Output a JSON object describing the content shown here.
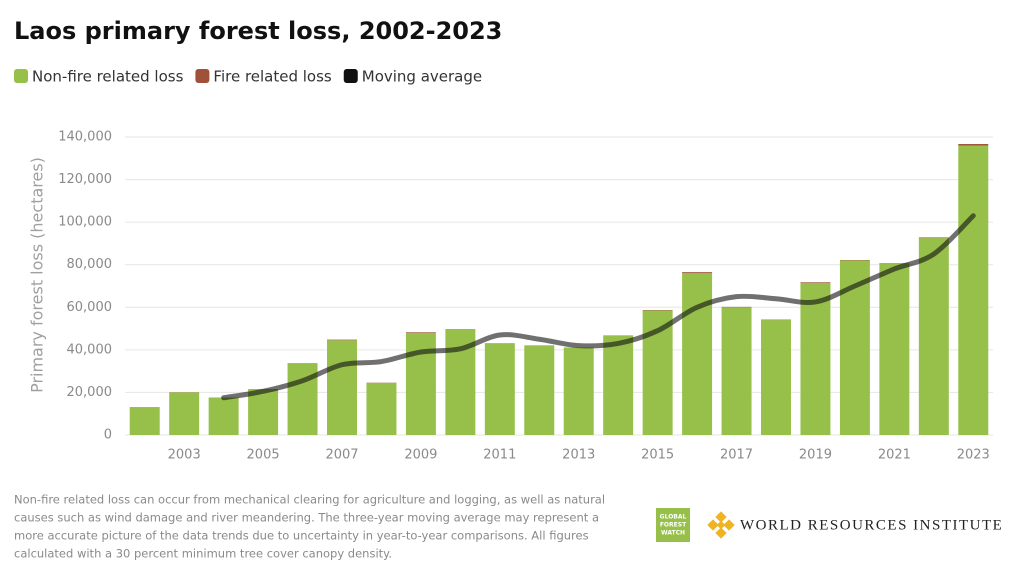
{
  "chart_data": {
    "type": "bar",
    "stacked": true,
    "title": "Laos primary forest loss, 2002-2023",
    "y_label": "Primary forest loss (hectares)",
    "categories": [
      null,
      2003,
      null,
      2005,
      null,
      2007,
      null,
      2009,
      null,
      2011,
      null,
      2013,
      null,
      2015,
      null,
      2017,
      null,
      2019,
      null,
      2021,
      null,
      2023
    ],
    "series": [
      {
        "name": "Non-fire related loss",
        "color": "#97c04a",
        "values": [
          13000,
          20000,
          17500,
          21500,
          33500,
          44500,
          24500,
          48000,
          49500,
          43000,
          42000,
          41000,
          46500,
          58500,
          76000,
          60000,
          54000,
          71500,
          82000,
          80500,
          92500,
          136000
        ]
      },
      {
        "name": "Fire related loss",
        "color": "#a0513a",
        "values": [
          100,
          100,
          100,
          100,
          200,
          300,
          100,
          300,
          200,
          100,
          100,
          100,
          200,
          200,
          500,
          200,
          200,
          300,
          200,
          200,
          300,
          700
        ]
      },
      {
        "name": "Moving average",
        "color": "#111111",
        "type": "line",
        "values": [
          null,
          null,
          17500,
          20500,
          25500,
          33000,
          34500,
          39000,
          40500,
          47000,
          45000,
          42000,
          43000,
          49000,
          60000,
          65000,
          64000,
          62500,
          70000,
          78000,
          85000,
          103000
        ]
      }
    ],
    "ylim": [
      0,
      140000
    ],
    "yticks": [
      0,
      {
        "value": 20000,
        "label": "20,000"
      },
      {
        "value": 40000,
        "label": "40,000"
      },
      {
        "value": 60000,
        "label": "60,000"
      },
      {
        "value": 80000,
        "label": "80,000"
      },
      {
        "value": 100000,
        "label": "100,000"
      },
      {
        "value": 120000,
        "label": "120,000"
      },
      {
        "value": 140000,
        "label": "140,000"
      }
    ],
    "grid": true,
    "legend": "top"
  },
  "footnote": [
    "Non-fire related loss can occur from mechanical clearing for agriculture and logging, as well as natural",
    "causes such as wind damage and river meandering. The three-year moving average may represent a",
    "more accurate picture of the data trends due to uncertainty in year-to-year comparisons. All figures",
    "calculated with a 30 percent minimum tree cover canopy density."
  ],
  "logos": {
    "gfw": [
      "GLOBAL",
      "FOREST",
      "WATCH"
    ],
    "wri": "WORLD RESOURCES INSTITUTE"
  }
}
